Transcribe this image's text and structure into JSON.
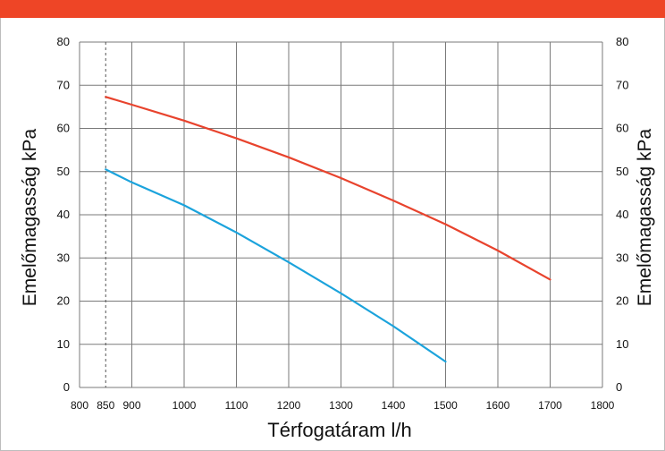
{
  "theme": {
    "bar_color": "#ee4526",
    "grid_color": "#7a7a7a",
    "marker_color": "#555555"
  },
  "chart_data": {
    "type": "line",
    "title": "",
    "xlabel": "Térfogatáram l/h",
    "ylabel": "Emelőmagasság kPa",
    "ylabel_right": "Emelőmagasság kPa",
    "xlim": [
      800,
      1800
    ],
    "ylim": [
      0,
      80
    ],
    "x_ticks": [
      800,
      850,
      900,
      1000,
      1100,
      1200,
      1300,
      1400,
      1500,
      1600,
      1700,
      1800
    ],
    "y_ticks": [
      0,
      10,
      20,
      30,
      40,
      50,
      60,
      70,
      80
    ],
    "vertical_marker": 850,
    "grid": true,
    "series": [
      {
        "color": "#e8432d",
        "x": [
          850,
          900,
          1000,
          1100,
          1200,
          1300,
          1400,
          1500,
          1600,
          1700
        ],
        "y": [
          67.3,
          65.5,
          61.8,
          57.7,
          53.3,
          48.5,
          43.3,
          37.8,
          31.7,
          25.0
        ]
      },
      {
        "color": "#1ba3dc",
        "x": [
          850,
          900,
          1000,
          1100,
          1200,
          1300,
          1400,
          1500
        ],
        "y": [
          50.5,
          47.5,
          42.2,
          35.9,
          29.0,
          21.8,
          14.2,
          6.0
        ]
      }
    ]
  }
}
